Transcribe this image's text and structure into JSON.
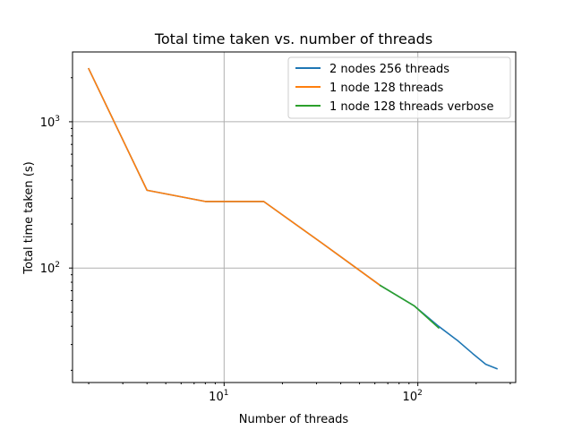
{
  "chart_data": {
    "type": "line",
    "title": "Total time taken vs. number of threads",
    "xlabel": "Number of threads",
    "ylabel": "Total time taken (s)",
    "xscale": "log",
    "yscale": "log",
    "xlim": [
      1.65,
      320
    ],
    "ylim": [
      16.5,
      3000
    ],
    "grid": true,
    "legend_position": "top-right",
    "xticks": [
      {
        "base": "10",
        "exp": "1",
        "value": 10
      },
      {
        "base": "10",
        "exp": "2",
        "value": 100
      }
    ],
    "yticks": [
      {
        "base": "10",
        "exp": "2",
        "value": 100
      },
      {
        "base": "10",
        "exp": "3",
        "value": 1000
      }
    ],
    "series": [
      {
        "name": "2 nodes 256 threads",
        "color": "#1f77b4",
        "x": [
          2,
          4,
          8,
          16,
          32,
          64,
          96,
          128,
          160,
          192,
          224,
          256
        ],
        "y": [
          2300,
          340,
          285,
          285,
          148,
          76,
          55,
          40,
          32,
          26,
          22,
          20.5
        ]
      },
      {
        "name": "1 node 128 threads",
        "color": "#ff7f0e",
        "x": [
          2,
          4,
          8,
          16,
          32,
          64
        ],
        "y": [
          2300,
          340,
          285,
          285,
          148,
          76
        ]
      },
      {
        "name": "1 node 128 threads verbose",
        "color": "#2ca02c",
        "x": [
          64,
          96,
          128
        ],
        "y": [
          76,
          55,
          39
        ]
      }
    ]
  }
}
